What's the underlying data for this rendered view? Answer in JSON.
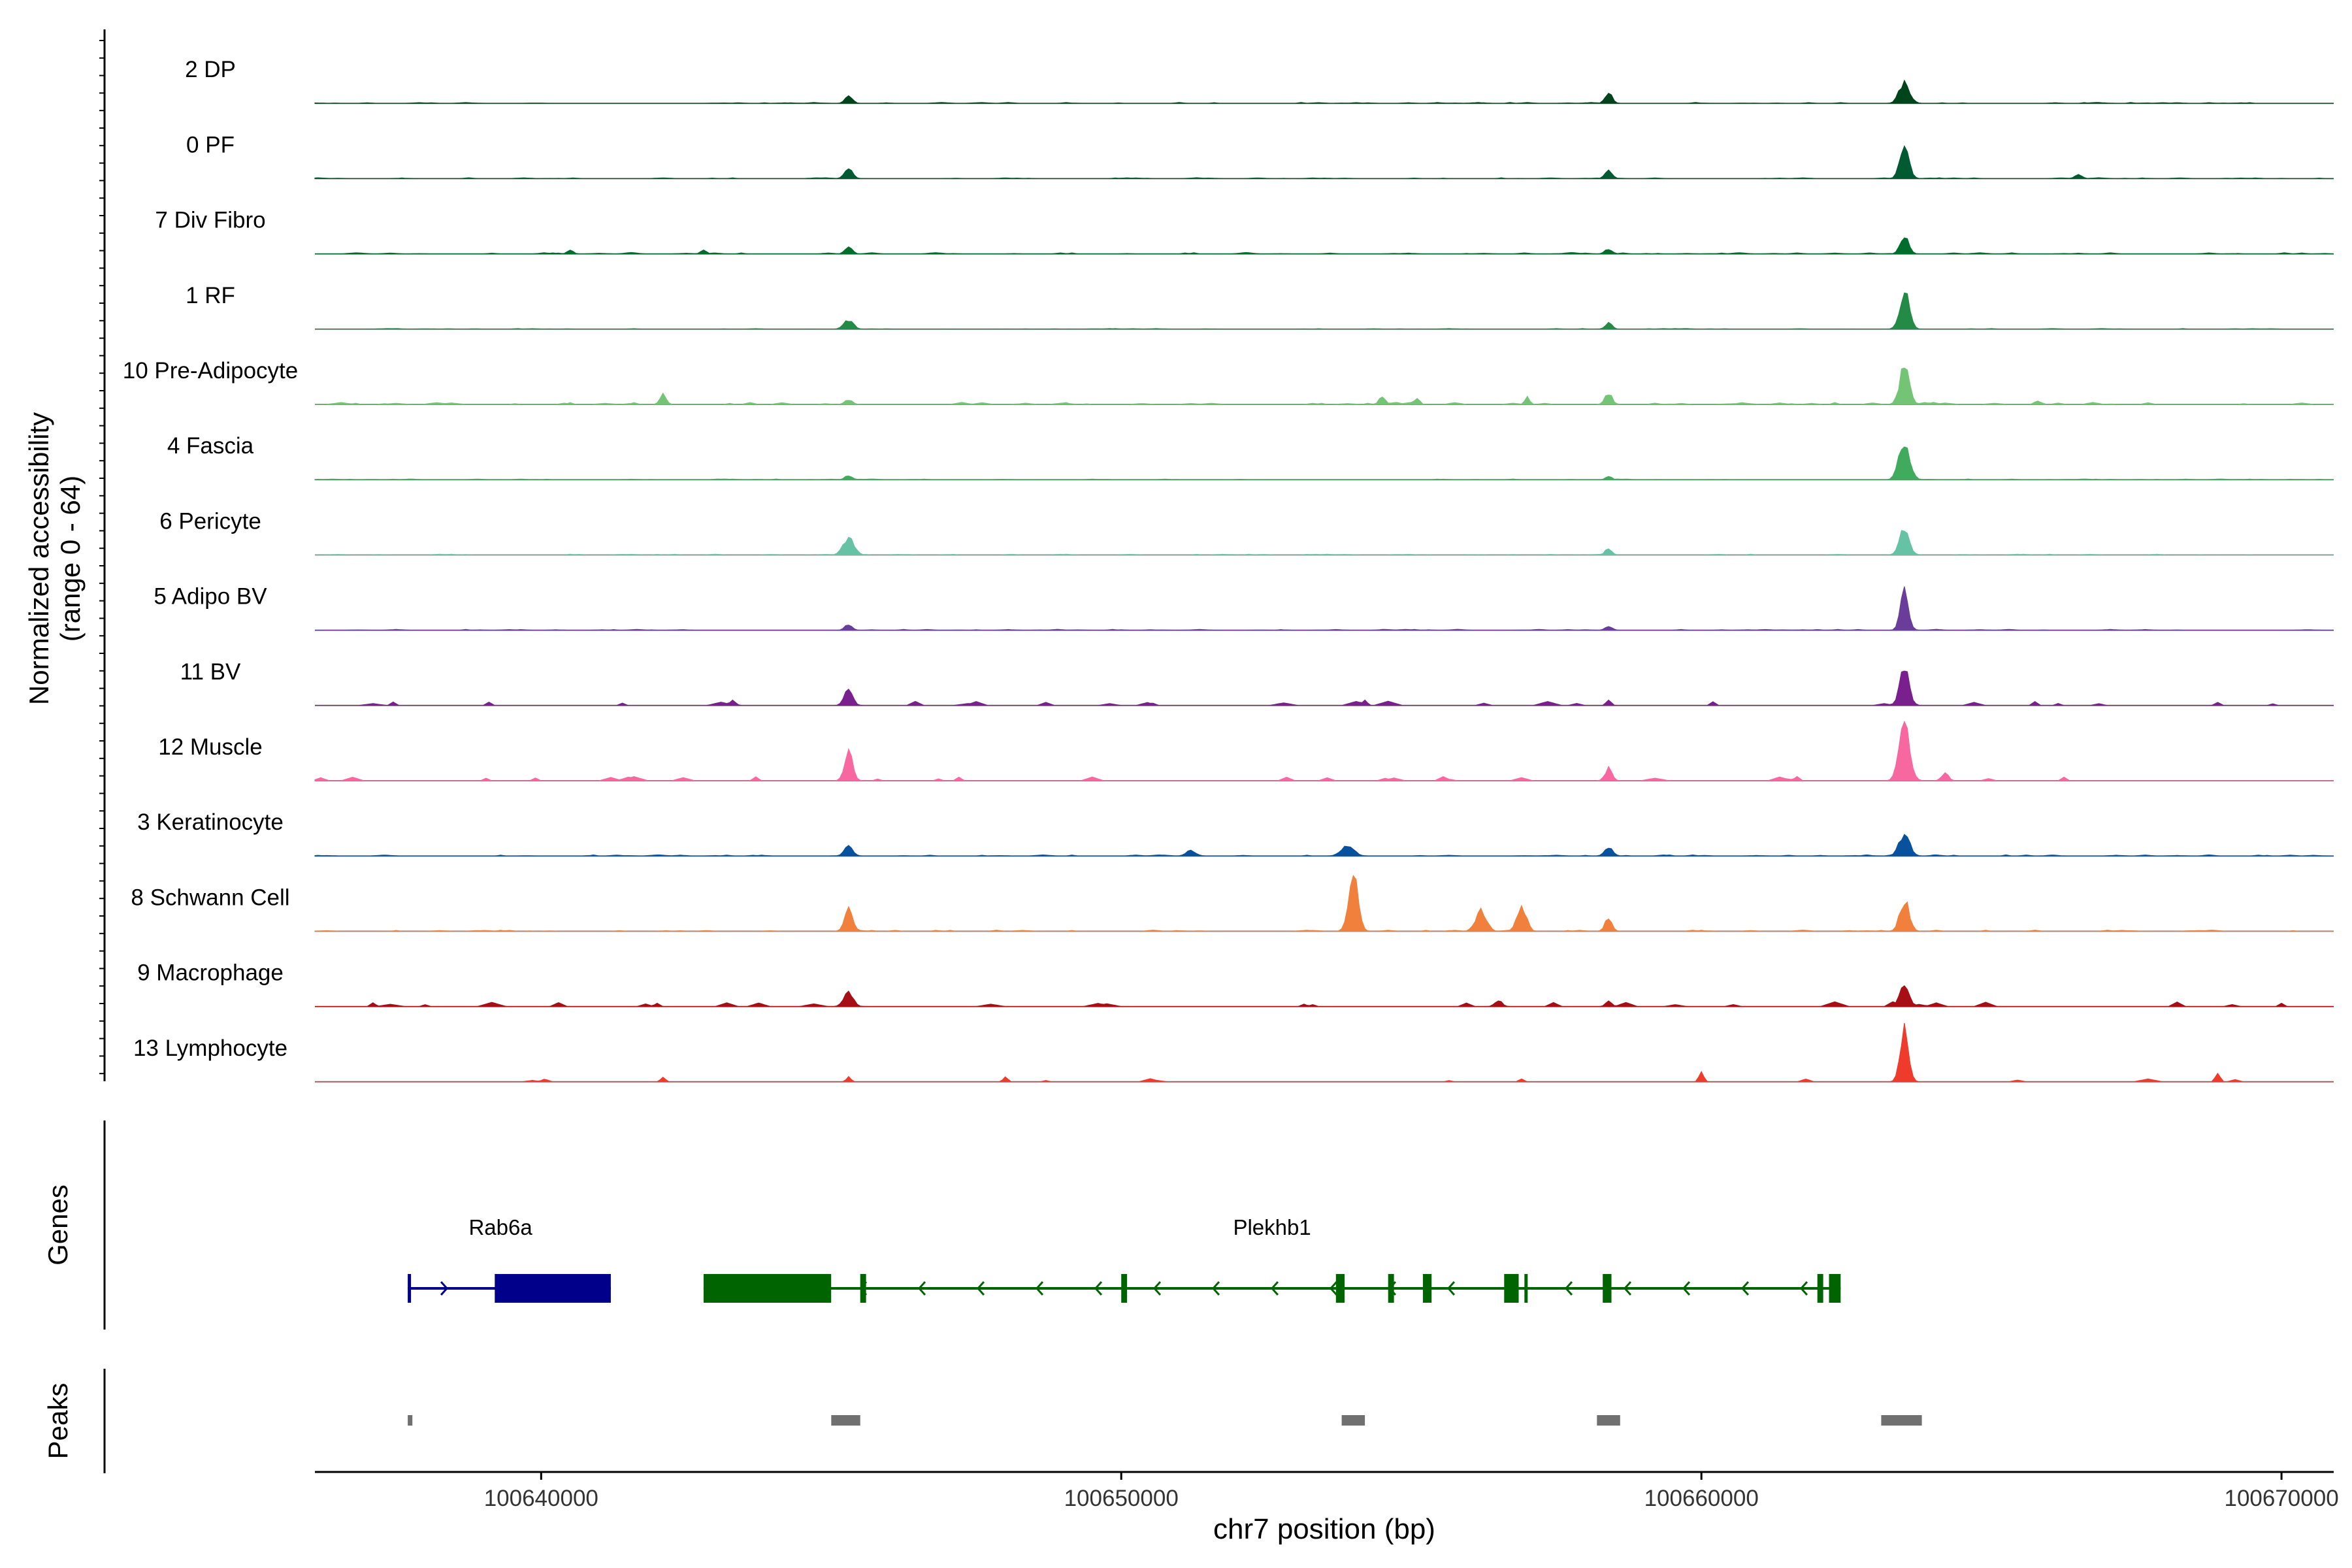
{
  "chart_data": {
    "type": "area",
    "title": "",
    "ylabel_line1": "Normalized accessibility",
    "ylabel_line2": "(range 0 - 64)",
    "xlabel": "chr7 position (bp)",
    "xlim": [
      100636100,
      100670900
    ],
    "xticks": [
      100640000,
      100650000,
      100660000,
      100670000
    ],
    "xtick_labels": [
      "100640000",
      "100650000",
      "100660000",
      "100670000"
    ],
    "yrange": [
      0,
      64
    ],
    "tracks": [
      {
        "name": "2 DP",
        "color": "#00441b",
        "noise": 0.4,
        "extent": [
          100636100,
          100670900
        ],
        "peaks": [
          [
            100645300,
            0.15,
            60
          ],
          [
            100658400,
            0.17,
            60
          ],
          [
            100663500,
            0.33,
            90
          ]
        ]
      },
      {
        "name": "0 PF",
        "color": "#005a32",
        "noise": 0.4,
        "extent": [
          100636100,
          100670900
        ],
        "peaks": [
          [
            100645300,
            0.15,
            70
          ],
          [
            100658400,
            0.13,
            60
          ],
          [
            100663500,
            0.48,
            80
          ],
          [
            100666500,
            0.07,
            60
          ]
        ]
      },
      {
        "name": "7 Div Fibro",
        "color": "#006d2c",
        "noise": 0.6,
        "extent": [
          100636100,
          100670900
        ],
        "peaks": [
          [
            100645300,
            0.13,
            60
          ],
          [
            100658400,
            0.08,
            60
          ],
          [
            100663500,
            0.28,
            70
          ],
          [
            100640500,
            0.06,
            50
          ],
          [
            100642800,
            0.06,
            50
          ]
        ]
      },
      {
        "name": "1 RF",
        "color": "#238b45",
        "noise": 0.3,
        "extent": [
          100636100,
          100670900
        ],
        "peaks": [
          [
            100645300,
            0.15,
            80
          ],
          [
            100658400,
            0.1,
            60
          ],
          [
            100663500,
            0.62,
            80
          ]
        ]
      },
      {
        "name": "10 Pre-Adipocyte",
        "color": "#74c476",
        "noise": 0.9,
        "extent": [
          100636100,
          100670900
        ],
        "peaks": [
          [
            100642100,
            0.18,
            50
          ],
          [
            100645300,
            0.08,
            60
          ],
          [
            100654500,
            0.15,
            50
          ],
          [
            100655100,
            0.12,
            40
          ],
          [
            100657000,
            0.12,
            40
          ],
          [
            100658400,
            0.18,
            60
          ],
          [
            100663500,
            0.63,
            80
          ],
          [
            100665800,
            0.06,
            50
          ]
        ]
      },
      {
        "name": "4 Fascia",
        "color": "#41ab5d",
        "noise": 0.3,
        "extent": [
          100636100,
          100670900
        ],
        "peaks": [
          [
            100645300,
            0.07,
            60
          ],
          [
            100658400,
            0.06,
            50
          ],
          [
            100663500,
            0.62,
            90
          ]
        ]
      },
      {
        "name": "6 Pericyte",
        "color": "#66c2a4",
        "noise": 0.3,
        "extent": [
          100636100,
          100670900
        ],
        "peaks": [
          [
            100645300,
            0.28,
            90
          ],
          [
            100658400,
            0.12,
            50
          ],
          [
            100663500,
            0.45,
            80
          ]
        ]
      },
      {
        "name": "5 Adipo BV",
        "color": "#6a3d9a",
        "noise": 0.4,
        "extent": [
          100636100,
          100670900
        ],
        "peaks": [
          [
            100645300,
            0.1,
            60
          ],
          [
            100658400,
            0.07,
            60
          ],
          [
            100663500,
            0.62,
            70
          ]
        ]
      },
      {
        "name": "11 BV",
        "color": "#7a1f8e",
        "noise": 0.9,
        "sparse": true,
        "extent": [
          100636100,
          100670900
        ],
        "peaks": [
          [
            100643300,
            0.08,
            50
          ],
          [
            100645300,
            0.28,
            70
          ],
          [
            100654200,
            0.1,
            40
          ],
          [
            100658400,
            0.1,
            40
          ],
          [
            100663500,
            0.58,
            80
          ],
          [
            100668900,
            0.06,
            40
          ]
        ]
      },
      {
        "name": "12 Muscle",
        "color": "#f768a1",
        "noise": 0.9,
        "sparse": true,
        "extent": [
          100636100,
          100670900
        ],
        "peaks": [
          [
            100645300,
            0.45,
            70
          ],
          [
            100658400,
            0.2,
            60
          ],
          [
            100663500,
            0.96,
            90
          ],
          [
            100664200,
            0.12,
            60
          ]
        ]
      },
      {
        "name": "3 Keratinocyte",
        "color": "#08519c",
        "noise": 0.5,
        "extent": [
          100636100,
          100670900
        ],
        "peaks": [
          [
            100645300,
            0.18,
            70
          ],
          [
            100651200,
            0.1,
            80
          ],
          [
            100653900,
            0.16,
            110
          ],
          [
            100658400,
            0.14,
            70
          ],
          [
            100663500,
            0.36,
            90
          ]
        ]
      },
      {
        "name": "8 Schwann Cell",
        "color": "#f0803c",
        "noise": 0.5,
        "extent": [
          100636100,
          100670900
        ],
        "peaks": [
          [
            100645300,
            0.35,
            70
          ],
          [
            100654000,
            0.92,
            80
          ],
          [
            100656200,
            0.35,
            90
          ],
          [
            100656900,
            0.4,
            80
          ],
          [
            100658400,
            0.22,
            60
          ],
          [
            100663500,
            0.5,
            80
          ]
        ]
      },
      {
        "name": "9 Macrophage",
        "color": "#a50f15",
        "noise": 1.0,
        "sparse": true,
        "extent": [
          100636100,
          100670900
        ],
        "peaks": [
          [
            100645300,
            0.22,
            80
          ],
          [
            100656500,
            0.1,
            60
          ],
          [
            100658400,
            0.1,
            50
          ],
          [
            100663500,
            0.32,
            80
          ]
        ]
      },
      {
        "name": "13 Lymphocyte",
        "color": "#ef3b2c",
        "noise": 0.7,
        "sparse": true,
        "sparseCount": 12,
        "extent": [
          100636100,
          100670900
        ],
        "peaks": [
          [
            100642100,
            0.08,
            40
          ],
          [
            100645300,
            0.08,
            40
          ],
          [
            100648000,
            0.08,
            40
          ],
          [
            100660000,
            0.15,
            40
          ],
          [
            100663500,
            0.88,
            70
          ],
          [
            100668900,
            0.15,
            40
          ]
        ]
      }
    ],
    "genes": [
      {
        "name": "Rab6a",
        "strand": "+",
        "color": "#00008b",
        "start": 100637700,
        "end": 100641200,
        "label_pos": 100639300,
        "exons": [
          [
            100637700,
            100637750
          ],
          [
            100639200,
            100641200
          ]
        ]
      },
      {
        "name": "Plekhb1",
        "strand": "-",
        "color": "#006400",
        "start": 100642800,
        "end": 100662400,
        "label_pos": 100652600,
        "exons": [
          [
            100642800,
            100645000
          ],
          [
            100645500,
            100645600
          ],
          [
            100650000,
            100650100
          ],
          [
            100653700,
            100653850
          ],
          [
            100654600,
            100654700
          ],
          [
            100655200,
            100655350
          ],
          [
            100656600,
            100656850
          ],
          [
            100656950,
            100656980
          ],
          [
            100658300,
            100658450
          ],
          [
            100662000,
            100662100
          ],
          [
            100662200,
            100662400
          ]
        ]
      }
    ],
    "peak_regions": [
      [
        100637700,
        100637780
      ],
      [
        100645000,
        100645500
      ],
      [
        100653800,
        100654200
      ],
      [
        100658200,
        100658600
      ],
      [
        100663100,
        100663800
      ]
    ],
    "panel_labels": {
      "genes": "Genes",
      "peaks": "Peaks"
    }
  }
}
